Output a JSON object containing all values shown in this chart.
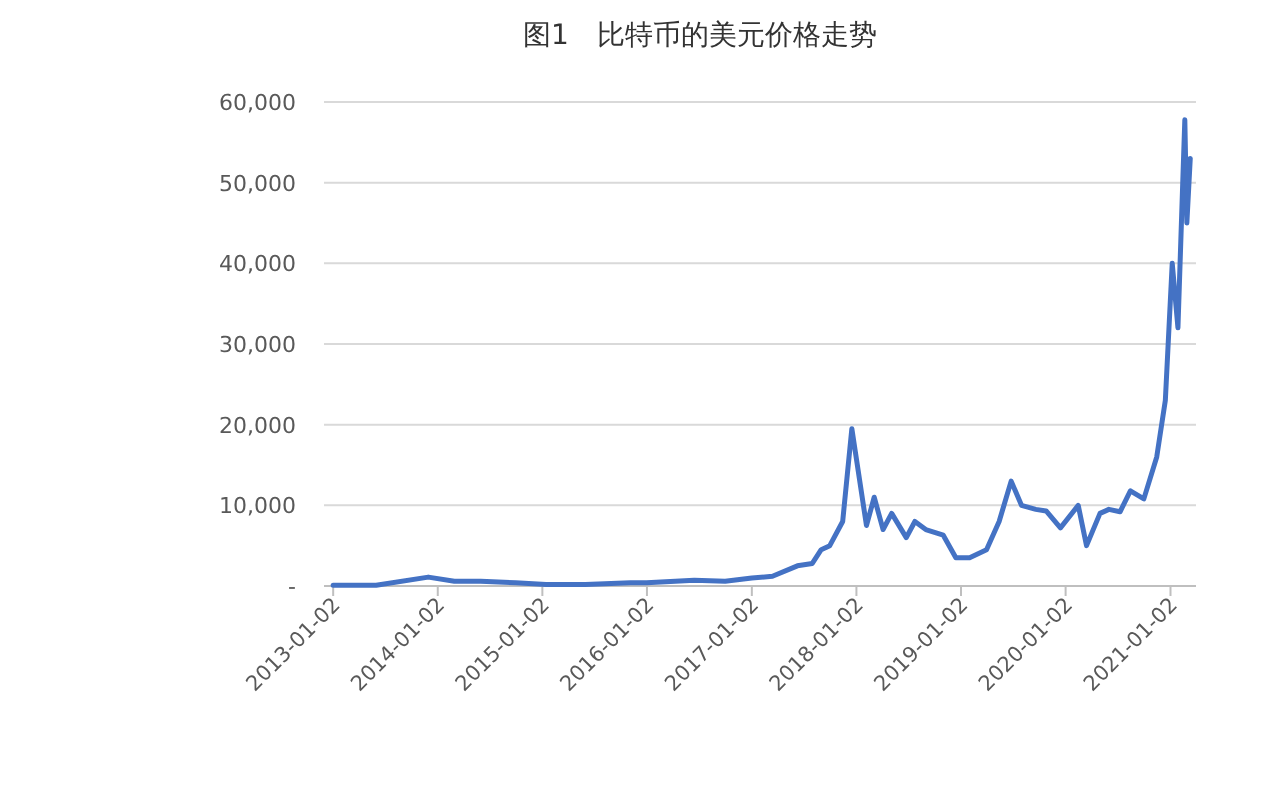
{
  "chart_data": {
    "type": "line",
    "title": "图1　比特币的美元价格走势",
    "x": [
      "2013-01-02",
      "2013-06-01",
      "2013-11-30",
      "2014-03-01",
      "2014-06-01",
      "2014-10-01",
      "2015-01-15",
      "2015-06-01",
      "2015-11-05",
      "2016-01-01",
      "2016-06-15",
      "2016-10-01",
      "2017-01-02",
      "2017-03-15",
      "2017-06-10",
      "2017-08-01",
      "2017-09-01",
      "2017-10-01",
      "2017-11-15",
      "2017-12-17",
      "2018-02-06",
      "2018-03-05",
      "2018-04-05",
      "2018-05-05",
      "2018-06-25",
      "2018-07-25",
      "2018-09-01",
      "2018-11-01",
      "2018-12-15",
      "2019-02-01",
      "2019-04-01",
      "2019-05-15",
      "2019-06-26",
      "2019-08-01",
      "2019-09-20",
      "2019-10-26",
      "2019-12-15",
      "2020-02-15",
      "2020-03-15",
      "2020-05-01",
      "2020-06-01",
      "2020-07-10",
      "2020-08-15",
      "2020-10-01",
      "2020-11-15",
      "2020-12-15",
      "2021-01-08",
      "2021-01-28",
      "2021-02-21",
      "2021-02-28",
      "2021-03-12"
    ],
    "values": [
      100,
      100,
      1100,
      600,
      600,
      400,
      200,
      200,
      400,
      400,
      700,
      600,
      1000,
      1200,
      2500,
      2800,
      4500,
      5000,
      8000,
      19500,
      7500,
      11000,
      7000,
      9000,
      6000,
      8000,
      7000,
      6300,
      3500,
      3500,
      4500,
      8000,
      13000,
      10000,
      9500,
      9300,
      7200,
      10000,
      5000,
      9000,
      9500,
      9200,
      11800,
      10800,
      16000,
      23000,
      40000,
      32000,
      57800,
      45000,
      53000
    ],
    "color": "#4472c4",
    "xlim": [
      "2012-12-01",
      "2021-04-01"
    ],
    "xticks": [
      "2013-01-02",
      "2014-01-02",
      "2015-01-02",
      "2016-01-02",
      "2017-01-02",
      "2018-01-02",
      "2019-01-02",
      "2020-01-02",
      "2021-01-02"
    ],
    "ylim": [
      0,
      60000
    ],
    "yticks": [
      {
        "value": 0,
        "label": "-"
      },
      {
        "value": 10000,
        "label": "10,000"
      },
      {
        "value": 20000,
        "label": "20,000"
      },
      {
        "value": 30000,
        "label": "30,000"
      },
      {
        "value": 40000,
        "label": "40,000"
      },
      {
        "value": 50000,
        "label": "50,000"
      },
      {
        "value": 60000,
        "label": "60,000"
      }
    ],
    "grid": "y"
  }
}
